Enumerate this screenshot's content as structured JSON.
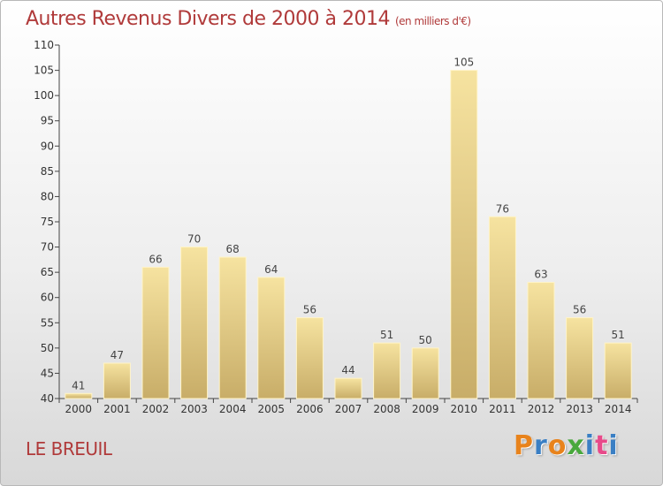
{
  "header": {
    "title": "Autres Revenus Divers de 2000 à 2014",
    "unit": "(en milliers d'€)"
  },
  "footer": {
    "place": "LE BREUIL",
    "logo_letters": [
      "P",
      "r",
      "o",
      "x",
      "i",
      "t",
      "i"
    ],
    "logo_colors": [
      "#e8831c",
      "#3a7fc4",
      "#e8831c",
      "#48a83c",
      "#3a7fc4",
      "#e84a8a",
      "#3a7fc4"
    ]
  },
  "colors": {
    "title": "#b03a3a",
    "bar_top": "#f6e3a0",
    "bar_bottom": "#c8ad68",
    "axis": "#444444"
  },
  "chart_data": {
    "type": "bar",
    "title": "Autres Revenus Divers de 2000 à 2014",
    "xlabel": "",
    "ylabel": "",
    "categories": [
      "2000",
      "2001",
      "2002",
      "2003",
      "2004",
      "2005",
      "2006",
      "2007",
      "2008",
      "2009",
      "2010",
      "2011",
      "2012",
      "2013",
      "2014"
    ],
    "values": [
      41,
      47,
      66,
      70,
      68,
      64,
      56,
      44,
      51,
      50,
      105,
      76,
      63,
      56,
      51
    ],
    "ylim": [
      40,
      110
    ],
    "yticks": [
      40,
      45,
      50,
      55,
      60,
      65,
      70,
      75,
      80,
      85,
      90,
      95,
      100,
      105,
      110
    ],
    "grid": false,
    "data_labels": true
  }
}
